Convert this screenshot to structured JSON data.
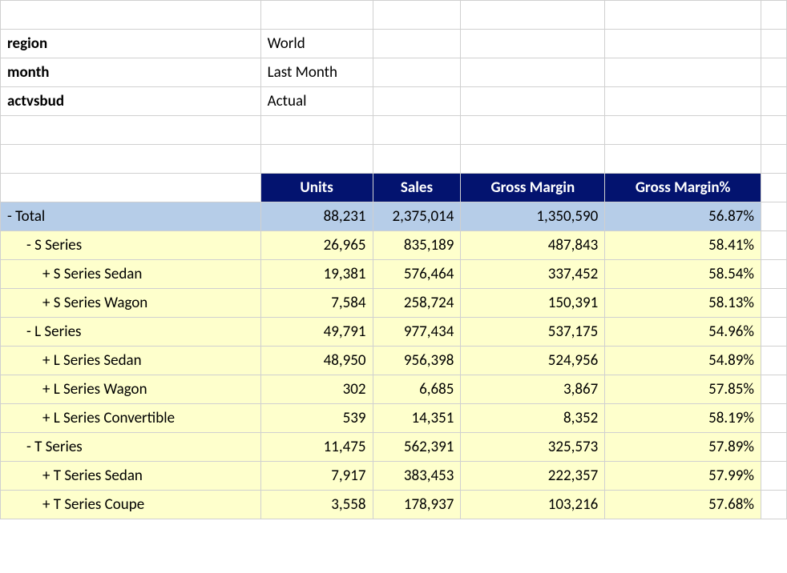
{
  "filters": {
    "region_label": "region",
    "region_value": "World",
    "month_label": "month",
    "month_value": "Last Month",
    "actvsbud_label": "actvsbud",
    "actvsbud_value": "Actual"
  },
  "headers": {
    "units": "Units",
    "sales": "Sales",
    "gross_margin": "Gross Margin",
    "gross_margin_pct": "Gross Margin%"
  },
  "rows": [
    {
      "label": "- Total",
      "indent": 0,
      "type": "total",
      "units": "88,231",
      "sales": "2,375,014",
      "gm": "1,350,590",
      "gmp": "56.87%"
    },
    {
      "label": "- S Series",
      "indent": 1,
      "type": "data",
      "units": "26,965",
      "sales": "835,189",
      "gm": "487,843",
      "gmp": "58.41%"
    },
    {
      "label": "+ S Series Sedan",
      "indent": 2,
      "type": "data",
      "units": "19,381",
      "sales": "576,464",
      "gm": "337,452",
      "gmp": "58.54%"
    },
    {
      "label": "+ S Series Wagon",
      "indent": 2,
      "type": "data",
      "units": "7,584",
      "sales": "258,724",
      "gm": "150,391",
      "gmp": "58.13%"
    },
    {
      "label": "- L Series",
      "indent": 1,
      "type": "data",
      "units": "49,791",
      "sales": "977,434",
      "gm": "537,175",
      "gmp": "54.96%"
    },
    {
      "label": "+ L Series Sedan",
      "indent": 2,
      "type": "data",
      "units": "48,950",
      "sales": "956,398",
      "gm": "524,956",
      "gmp": "54.89%"
    },
    {
      "label": "+ L Series Wagon",
      "indent": 2,
      "type": "data",
      "units": "302",
      "sales": "6,685",
      "gm": "3,867",
      "gmp": "57.85%"
    },
    {
      "label": "+ L Series Convertible",
      "indent": 2,
      "type": "data",
      "units": "539",
      "sales": "14,351",
      "gm": "8,352",
      "gmp": "58.19%"
    },
    {
      "label": "- T Series",
      "indent": 1,
      "type": "data",
      "units": "11,475",
      "sales": "562,391",
      "gm": "325,573",
      "gmp": "57.89%"
    },
    {
      "label": "+ T Series Sedan",
      "indent": 2,
      "type": "data",
      "units": "7,917",
      "sales": "383,453",
      "gm": "222,357",
      "gmp": "57.99%"
    },
    {
      "label": "+ T Series Coupe",
      "indent": 2,
      "type": "data",
      "units": "3,558",
      "sales": "178,937",
      "gm": "103,216",
      "gmp": "57.68%"
    }
  ],
  "styling": {
    "header_bg": "#03136f",
    "header_fg": "#ffffff",
    "total_bg": "#b6cde8",
    "data_bg": "#feffcc",
    "grid_border": "#d0d0d0",
    "font_family": "Calibri",
    "font_size_pt": 14
  }
}
